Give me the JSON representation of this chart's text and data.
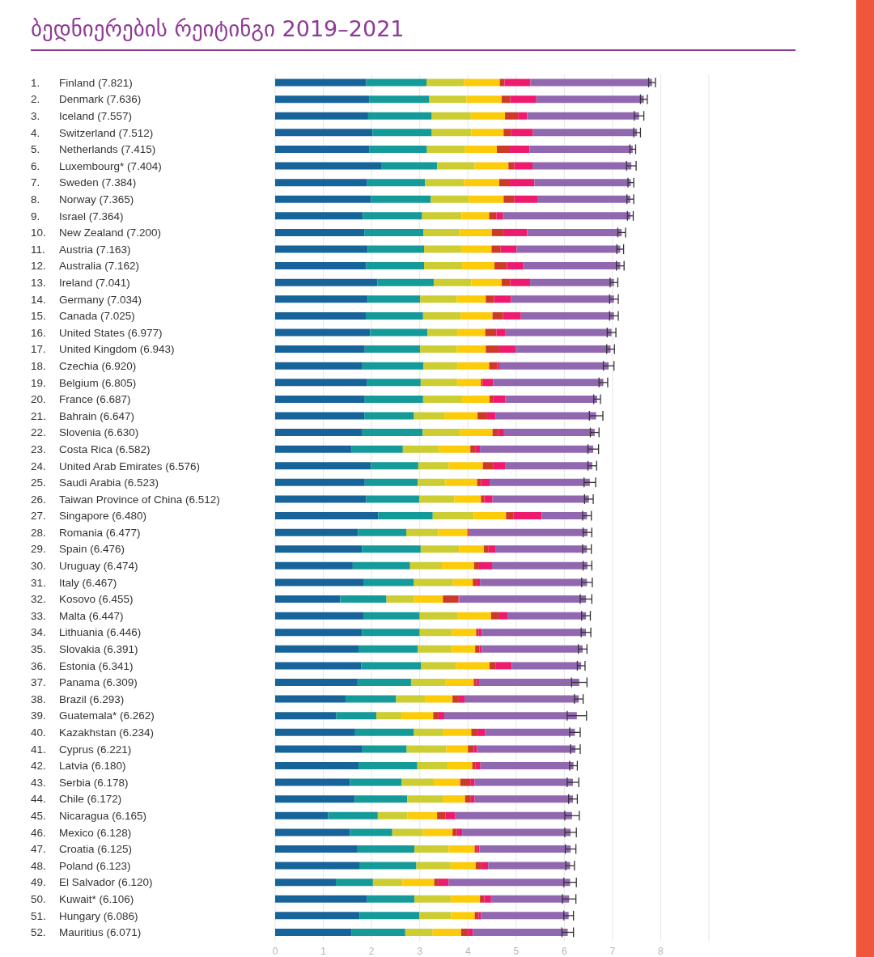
{
  "chart_data": {
    "type": "bar",
    "orientation": "horizontal",
    "stacked": true,
    "title": "ბედნიერების რეიტინგი 2019–2021",
    "categories": [
      "1. Finland (7.821)",
      "2. Denmark (7.636)",
      "3. Iceland (7.557)",
      "4. Switzerland (7.512)",
      "5. Netherlands (7.415)",
      "6. Luxembourg* (7.404)",
      "7. Sweden (7.384)",
      "8. Norway (7.365)",
      "9. Israel (7.364)",
      "10. New Zealand (7.200)",
      "11. Austria (7.163)",
      "12. Australia (7.162)",
      "13. Ireland (7.041)",
      "14. Germany (7.034)",
      "15. Canada (7.025)",
      "16. United States (6.977)",
      "17. United Kingdom (6.943)",
      "18. Czechia (6.920)",
      "19. Belgium (6.805)",
      "20. France (6.687)",
      "21. Bahrain (6.647)",
      "22. Slovenia (6.630)",
      "23. Costa Rica (6.582)",
      "24. United Arab Emirates (6.576)",
      "25. Saudi Arabia (6.523)",
      "26. Taiwan Province of China (6.512)",
      "27. Singapore (6.480)",
      "28. Romania (6.477)",
      "29. Spain (6.476)",
      "30. Uruguay (6.474)",
      "31. Italy (6.467)",
      "32. Kosovo (6.455)",
      "33. Malta (6.447)",
      "34. Lithuania (6.446)",
      "35. Slovakia (6.391)",
      "36. Estonia (6.341)",
      "37. Panama (6.309)",
      "38. Brazil (6.293)",
      "39. Guatemala* (6.262)",
      "40. Kazakhstan (6.234)",
      "41. Cyprus (6.221)",
      "42. Latvia (6.180)",
      "43. Serbia (6.178)",
      "44. Chile (6.172)",
      "45. Nicaragua (6.165)",
      "46. Mexico (6.128)",
      "47. Croatia (6.125)",
      "48. Poland (6.123)",
      "49. El Salvador (6.120)",
      "50. Kuwait* (6.106)",
      "51. Hungary (6.086)",
      "52. Mauritius (6.071)"
    ],
    "series": [
      {
        "color": "#17649a",
        "values": [
          1.89,
          1.95,
          1.93,
          2.02,
          1.95,
          2.2,
          1.91,
          1.99,
          1.82,
          1.85,
          1.92,
          1.89,
          2.12,
          1.92,
          1.88,
          1.97,
          1.86,
          1.81,
          1.91,
          1.86,
          1.85,
          1.81,
          1.59,
          1.99,
          1.86,
          1.89,
          2.14,
          1.72,
          1.8,
          1.61,
          1.83,
          1.35,
          1.83,
          1.8,
          1.73,
          1.79,
          1.71,
          1.46,
          1.27,
          1.66,
          1.81,
          1.73,
          1.55,
          1.65,
          1.1,
          1.55,
          1.71,
          1.76,
          1.26,
          1.91,
          1.75,
          1.59
        ]
      },
      {
        "color": "#159a9a",
        "values": [
          1.25,
          1.25,
          1.32,
          1.23,
          1.2,
          1.16,
          1.2,
          1.24,
          1.23,
          1.23,
          1.17,
          1.2,
          1.17,
          1.09,
          1.19,
          1.19,
          1.15,
          1.27,
          1.11,
          1.21,
          1.03,
          1.25,
          1.06,
          0.98,
          1.1,
          1.1,
          1.13,
          1.0,
          1.22,
          1.19,
          1.05,
          0.96,
          1.17,
          1.2,
          1.23,
          1.24,
          1.11,
          1.05,
          0.83,
          1.22,
          0.92,
          1.22,
          1.07,
          1.09,
          1.03,
          0.88,
          1.18,
          1.17,
          0.77,
          0.98,
          1.24,
          1.11
        ]
      },
      {
        "color": "#cccc33",
        "values": [
          0.78,
          0.77,
          0.81,
          0.82,
          0.79,
          0.78,
          0.81,
          0.79,
          0.82,
          0.74,
          0.77,
          0.79,
          0.78,
          0.76,
          0.78,
          0.63,
          0.76,
          0.71,
          0.76,
          0.81,
          0.63,
          0.77,
          0.74,
          0.63,
          0.57,
          0.73,
          0.85,
          0.66,
          0.8,
          0.66,
          0.81,
          0.57,
          0.79,
          0.67,
          0.71,
          0.72,
          0.72,
          0.61,
          0.52,
          0.61,
          0.82,
          0.63,
          0.67,
          0.75,
          0.61,
          0.63,
          0.71,
          0.71,
          0.61,
          0.75,
          0.66,
          0.57
        ]
      },
      {
        "color": "#fccc0a",
        "values": [
          0.74,
          0.73,
          0.71,
          0.67,
          0.66,
          0.7,
          0.73,
          0.72,
          0.57,
          0.68,
          0.63,
          0.67,
          0.63,
          0.6,
          0.66,
          0.57,
          0.6,
          0.65,
          0.49,
          0.57,
          0.69,
          0.68,
          0.66,
          0.71,
          0.66,
          0.55,
          0.67,
          0.61,
          0.51,
          0.67,
          0.41,
          0.6,
          0.69,
          0.5,
          0.48,
          0.7,
          0.58,
          0.56,
          0.66,
          0.58,
          0.45,
          0.51,
          0.55,
          0.45,
          0.62,
          0.62,
          0.54,
          0.52,
          0.66,
          0.61,
          0.49,
          0.59
        ]
      },
      {
        "color": "#cc3a2a",
        "values": [
          0.1,
          0.18,
          0.27,
          0.15,
          0.27,
          0.12,
          0.22,
          0.22,
          0.15,
          0.25,
          0.19,
          0.26,
          0.18,
          0.17,
          0.22,
          0.23,
          0.28,
          0.17,
          0.04,
          0.07,
          0.2,
          0.12,
          0.1,
          0.21,
          0.08,
          0.07,
          0.16,
          0.03,
          0.1,
          0.1,
          0.08,
          0.32,
          0.17,
          0.05,
          0.09,
          0.12,
          0.05,
          0.13,
          0.11,
          0.13,
          0.12,
          0.07,
          0.21,
          0.12,
          0.17,
          0.09,
          0.05,
          0.12,
          0.09,
          0.09,
          0.08,
          0.14
        ]
      },
      {
        "color": "#ee1a6e",
        "values": [
          0.54,
          0.54,
          0.19,
          0.46,
          0.41,
          0.38,
          0.51,
          0.48,
          0.14,
          0.48,
          0.33,
          0.34,
          0.41,
          0.35,
          0.37,
          0.18,
          0.34,
          0.04,
          0.21,
          0.26,
          0.17,
          0.12,
          0.1,
          0.25,
          0.18,
          0.17,
          0.58,
          0.01,
          0.15,
          0.27,
          0.07,
          0.02,
          0.17,
          0.07,
          0.05,
          0.34,
          0.06,
          0.12,
          0.12,
          0.16,
          0.07,
          0.1,
          0.09,
          0.08,
          0.21,
          0.11,
          0.05,
          0.14,
          0.21,
          0.14,
          0.05,
          0.1
        ]
      },
      {
        "color": "#9168b0",
        "values": [
          2.52,
          2.23,
          2.32,
          2.16,
          2.14,
          2.05,
          2.0,
          1.93,
          2.64,
          1.96,
          2.15,
          2.01,
          1.74,
          2.14,
          1.93,
          2.21,
          1.97,
          2.27,
          2.29,
          1.9,
          2.09,
          1.88,
          2.35,
          1.81,
          2.08,
          2.0,
          0.94,
          2.45,
          1.89,
          1.98,
          2.22,
          2.63,
          1.63,
          2.16,
          2.09,
          1.44,
          2.08,
          2.37,
          2.75,
          1.86,
          2.04,
          1.93,
          2.04,
          2.04,
          2.42,
          2.25,
          1.89,
          1.7,
          2.52,
          1.62,
          1.82,
          1.97
        ],
        "errors": [
          0.07,
          0.07,
          0.1,
          0.07,
          0.06,
          0.1,
          0.06,
          0.07,
          0.06,
          0.08,
          0.07,
          0.08,
          0.08,
          0.09,
          0.09,
          0.09,
          0.08,
          0.11,
          0.09,
          0.07,
          0.14,
          0.09,
          0.11,
          0.09,
          0.12,
          0.09,
          0.09,
          0.09,
          0.09,
          0.09,
          0.11,
          0.12,
          0.09,
          0.1,
          0.09,
          0.08,
          0.16,
          0.09,
          0.2,
          0.11,
          0.1,
          0.08,
          0.12,
          0.09,
          0.15,
          0.12,
          0.11,
          0.09,
          0.13,
          0.14,
          0.1,
          0.12
        ]
      }
    ],
    "xlim": [
      0,
      9
    ],
    "xticks": [
      0,
      1,
      2,
      3,
      4,
      5,
      6,
      7,
      8,
      {
        "value": 9,
        "label": null
      }
    ],
    "grid": "x"
  }
}
